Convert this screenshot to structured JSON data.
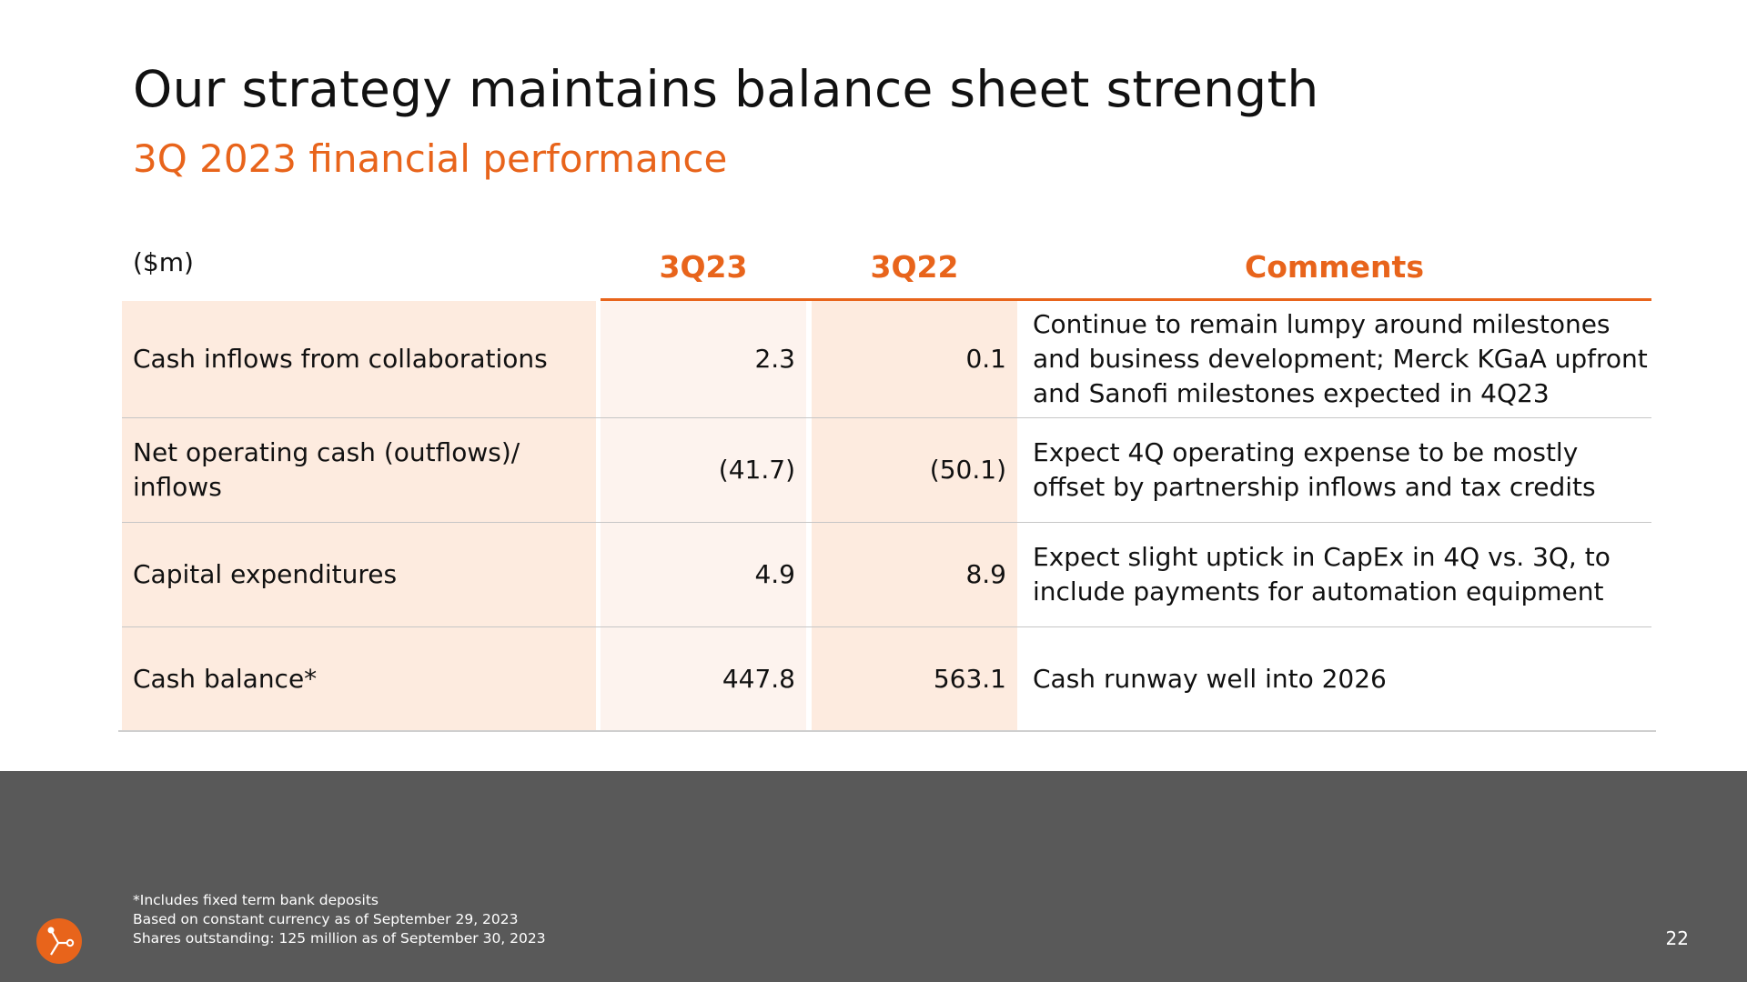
{
  "header": {
    "title": "Our strategy maintains balance sheet strength",
    "subtitle": "3Q 2023 financial performance"
  },
  "table": {
    "unit_label": "($m)",
    "columns": [
      "3Q23",
      "3Q22",
      "Comments"
    ],
    "rows": [
      {
        "label": "Cash inflows from collaborations",
        "q23": "2.3",
        "q22": "0.1",
        "comment": "Continue to remain lumpy around milestones and business development; Merck KGaA upfront and Sanofi milestones expected in 4Q23"
      },
      {
        "label": "Net operating cash (outflows)/ inflows",
        "q23": "(41.7)",
        "q22": "(50.1)",
        "comment": "Expect 4Q operating expense to be mostly offset by partnership inflows and tax credits"
      },
      {
        "label": "Capital expenditures",
        "q23": "4.9",
        "q22": "8.9",
        "comment": "Expect slight uptick in CapEx in 4Q vs. 3Q, to include payments for automation equipment"
      },
      {
        "label": "Cash balance*",
        "q23": "447.8",
        "q22": "563.1",
        "comment": "Cash runway well into 2026"
      }
    ]
  },
  "footer": {
    "notes": [
      "*Includes fixed term bank deposits",
      "Based on constant currency as of September 29, 2023",
      "Shares outstanding: 125 million as of September 30, 2023"
    ],
    "page_number": "22"
  },
  "colors": {
    "accent": "#e8641b",
    "label_fill": "#fdebdf",
    "value_fill": "#fdf3ee",
    "footer_bg": "#595959"
  },
  "icons": {
    "logo": "company-logo-icon"
  }
}
